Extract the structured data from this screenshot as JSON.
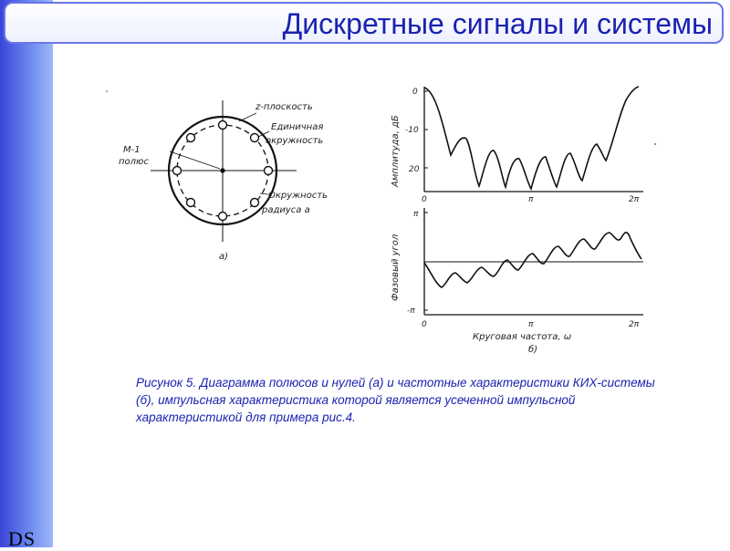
{
  "header": {
    "title": "Дискретные сигналы и системы"
  },
  "sidebar": {
    "logo": "DS"
  },
  "figure_a": {
    "z_plane": "z-плоскость",
    "unit_circle_1": "Единичная",
    "unit_circle_2": "окружность",
    "pole_1": "M-1",
    "pole_2": "полюс",
    "radius_circle_1": "Окружность",
    "radius_circle_2": "радиуса a",
    "sublabel": "а)"
  },
  "figure_b": {
    "amp_ylabel": "Амплитуда, дБ",
    "amp_ticks": [
      "0",
      "-10",
      "20"
    ],
    "amp_xticks": [
      "0",
      "π",
      "2π"
    ],
    "phase_ylabel": "Фазовый угол",
    "phase_ticks": [
      "π",
      "-π"
    ],
    "phase_xticks": [
      "0",
      "π",
      "2π"
    ],
    "xlabel": "Круговая частота, ω",
    "sublabel": "б)"
  },
  "caption": "Рисунок 5. Диаграмма полюсов и нулей (а) и частотные характеристики КИХ-системы (б), импульсная характеристика которой является усеченной импульсной характеристикой для примера рис.4."
}
